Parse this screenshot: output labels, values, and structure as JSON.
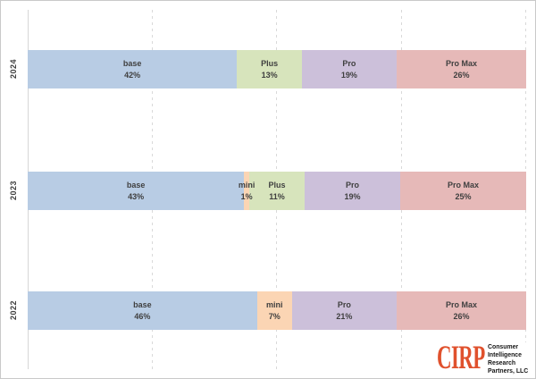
{
  "page": {
    "background": "#ffffff",
    "frame_border_color": "#c9c9c9",
    "gridline_color": "#d9d9d9",
    "label_text_color": "#3f3f3f"
  },
  "chart_data": {
    "type": "bar",
    "stacked": true,
    "orientation": "horizontal",
    "title": "",
    "xlabel": "",
    "ylabel": "",
    "categories": [
      "2024",
      "2023",
      "2022"
    ],
    "series": [
      {
        "name": "base",
        "color": "#b8cce4",
        "values": [
          42,
          43,
          46
        ]
      },
      {
        "name": "mini",
        "color": "#fbd5b4",
        "values": [
          0,
          1,
          7
        ]
      },
      {
        "name": "Plus",
        "color": "#d7e4bc",
        "values": [
          13,
          11,
          0
        ]
      },
      {
        "name": "Pro",
        "color": "#ccc0da",
        "values": [
          19,
          19,
          21
        ]
      },
      {
        "name": "Pro Max",
        "color": "#e6b9b8",
        "values": [
          26,
          25,
          26
        ]
      }
    ],
    "xlim": [
      0,
      100
    ],
    "gridline_positions_pct": [
      25,
      50,
      75,
      100
    ],
    "gridline_style": "dashed",
    "legend": false,
    "data_label_format": "{name} {value}%"
  },
  "logo": {
    "brand": "CIRP",
    "brand_color": "#e0512d",
    "lines": [
      "Consumer",
      "Intelligence",
      "Research",
      "Partners, LLC"
    ]
  }
}
